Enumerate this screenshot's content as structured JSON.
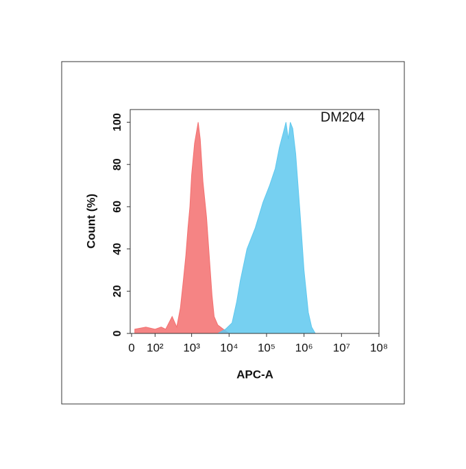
{
  "chart_data": {
    "type": "area",
    "annotation": "DM204",
    "xlabel": "APC-A",
    "ylabel": "Count  (%)",
    "xscale": "biexponential",
    "xlim": [
      0,
      100000000
    ],
    "xticks": [
      0,
      {
        "value": 100,
        "label": "10²"
      },
      {
        "value": 1000,
        "label": "10³"
      },
      {
        "value": 10000,
        "label": "10⁴"
      },
      {
        "value": 100000,
        "label": "10⁵"
      },
      {
        "value": 1000000,
        "label": "10⁶"
      },
      {
        "value": 10000000,
        "label": "10⁷"
      },
      {
        "value": 100000000,
        "label": "10⁸"
      }
    ],
    "ylim": [
      0,
      106
    ],
    "yticks": [
      0,
      20,
      40,
      60,
      80,
      100
    ],
    "series": [
      {
        "color": "#f36f6f",
        "x": [
          10,
          50,
          100,
          150,
          200,
          300,
          400,
          500,
          600,
          700,
          800,
          900,
          1000,
          1200,
          1400,
          1500,
          1700,
          2000,
          2500,
          3000,
          3500,
          4000,
          5000,
          7000,
          10000
        ],
        "values": [
          2,
          3,
          2,
          3,
          2,
          8,
          3,
          12,
          25,
          37,
          50,
          60,
          75,
          90,
          97,
          100,
          92,
          72,
          55,
          35,
          18,
          8,
          4,
          2,
          0
        ]
      },
      {
        "color": "#5ec8ee",
        "x": [
          5000,
          8000,
          12000,
          16000,
          20000,
          30000,
          50000,
          80000,
          120000,
          170000,
          220000,
          280000,
          330000,
          380000,
          430000,
          500000,
          600000,
          800000,
          1000000,
          1300000,
          1600000,
          2000000
        ],
        "values": [
          0,
          2,
          5,
          15,
          25,
          40,
          50,
          62,
          70,
          78,
          88,
          95,
          100,
          92,
          100,
          97,
          85,
          55,
          30,
          10,
          3,
          0
        ]
      }
    ]
  }
}
